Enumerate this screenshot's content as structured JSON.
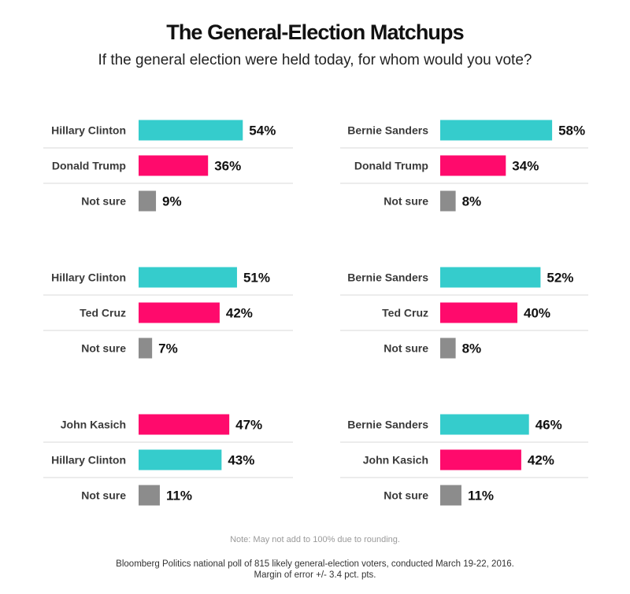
{
  "title": "The General-Election Matchups",
  "subtitle": "If the general election were held today, for whom would you vote?",
  "note": "Note: May not add to 100% due to rounding.",
  "source_line1": "Bloomberg Politics national poll of 815 likely general-election voters, conducted March 19-22, 2016.",
  "source_line2": "Margin of error +/- 3.4 pct. pts.",
  "colors": {
    "democrat": "#35cccc",
    "republican": "#ff0a6c",
    "not_sure": "#8c8c8c",
    "divider": "#d8d8d8"
  },
  "chart_data": [
    {
      "type": "bar",
      "categories": [
        "Hillary Clinton",
        "Donald Trump",
        "Not sure"
      ],
      "values": [
        54,
        36,
        9
      ],
      "labels": [
        "54%",
        "36%",
        "9%"
      ],
      "colors": [
        "democrat",
        "republican",
        "not_sure"
      ]
    },
    {
      "type": "bar",
      "categories": [
        "Bernie Sanders",
        "Donald Trump",
        "Not sure"
      ],
      "values": [
        58,
        34,
        8
      ],
      "labels": [
        "58%",
        "34%",
        "8%"
      ],
      "colors": [
        "democrat",
        "republican",
        "not_sure"
      ]
    },
    {
      "type": "bar",
      "categories": [
        "Hillary Clinton",
        "Ted Cruz",
        "Not sure"
      ],
      "values": [
        51,
        42,
        7
      ],
      "labels": [
        "51%",
        "42%",
        "7%"
      ],
      "colors": [
        "democrat",
        "republican",
        "not_sure"
      ]
    },
    {
      "type": "bar",
      "categories": [
        "Bernie Sanders",
        "Ted Cruz",
        "Not sure"
      ],
      "values": [
        52,
        40,
        8
      ],
      "labels": [
        "52%",
        "40%",
        "8%"
      ],
      "colors": [
        "democrat",
        "republican",
        "not_sure"
      ]
    },
    {
      "type": "bar",
      "categories": [
        "John Kasich",
        "Hillary Clinton",
        "Not sure"
      ],
      "values": [
        47,
        43,
        11
      ],
      "labels": [
        "47%",
        "43%",
        "11%"
      ],
      "colors": [
        "republican",
        "democrat",
        "not_sure"
      ]
    },
    {
      "type": "bar",
      "categories": [
        "Bernie Sanders",
        "John Kasich",
        "Not sure"
      ],
      "values": [
        46,
        42,
        11
      ],
      "labels": [
        "46%",
        "42%",
        "11%"
      ],
      "colors": [
        "democrat",
        "republican",
        "not_sure"
      ]
    }
  ]
}
